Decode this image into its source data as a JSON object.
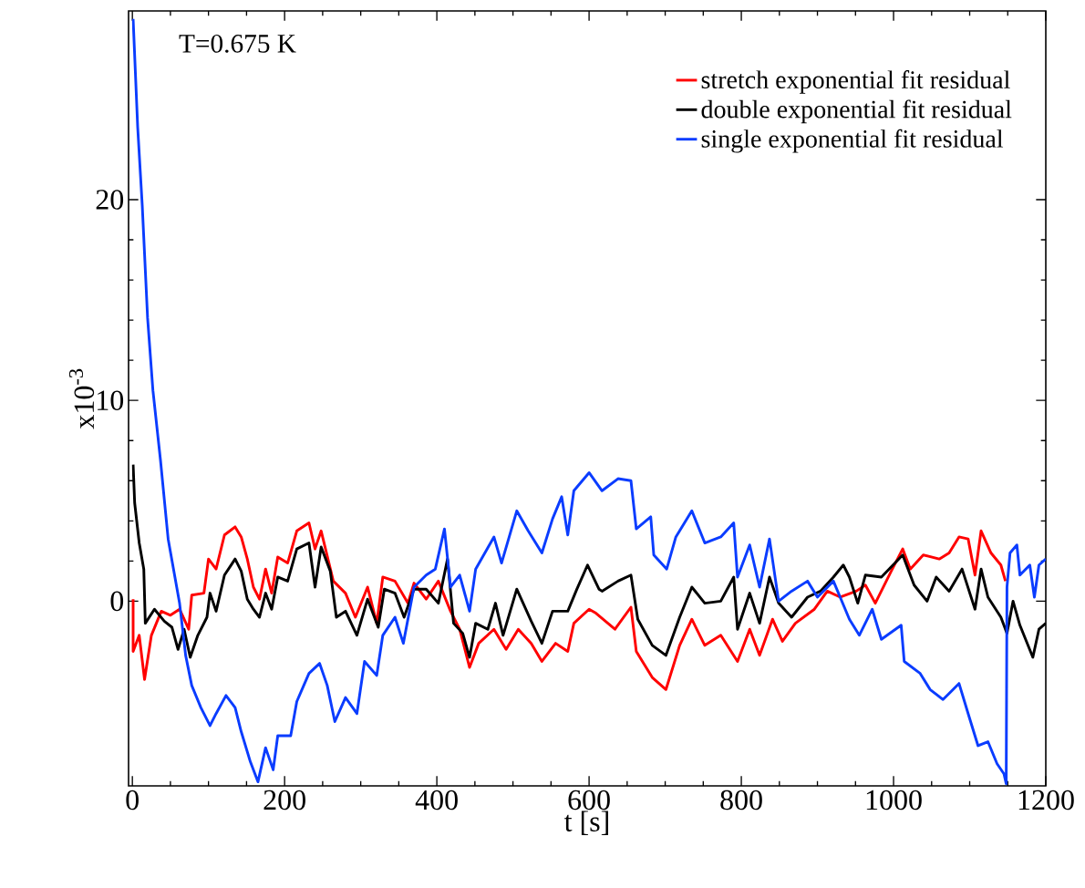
{
  "chart_data": {
    "type": "line",
    "xlabel": "t [s]",
    "ylabel": "x10$^{-3}$",
    "annotations": [
      "T=0.675 K"
    ],
    "xlim": [
      -5,
      1200
    ],
    "ylim": [
      -9.2,
      29.4
    ],
    "xticks": [
      0,
      200,
      400,
      600,
      800,
      1000,
      1200
    ],
    "yticks": [
      0,
      10,
      20
    ],
    "legend": "top right",
    "series": [
      {
        "name": "stretch exponential fit residual",
        "color": "#ff0000",
        "x": [
          1,
          1,
          9,
          16,
          25,
          38,
          50,
          62,
          74,
          78,
          94,
          100,
          110,
          121,
          135,
          143,
          151,
          159,
          167,
          175,
          183,
          191,
          204,
          216,
          232,
          240,
          248,
          264,
          280,
          293,
          309,
          321,
          329,
          345,
          362,
          370,
          386,
          402,
          418,
          430,
          443,
          455,
          475,
          491,
          507,
          524,
          538,
          556,
          572,
          580,
          600,
          609,
          634,
          655,
          662,
          683,
          701,
          719,
          735,
          752,
          773,
          795,
          811,
          824,
          841,
          854,
          871,
          896,
          913,
          930,
          951,
          963,
          976,
          997,
          1012,
          1022,
          1039,
          1060,
          1073,
          1086,
          1098,
          1107,
          1115,
          1128,
          1141,
          1147
        ],
        "values": [
          0.1,
          -2.5,
          -1.7,
          -3.9,
          -1.7,
          -0.5,
          -0.7,
          -0.4,
          -1.4,
          0.3,
          0.4,
          2.1,
          1.6,
          3.3,
          3.7,
          3.2,
          2.1,
          0.7,
          0.1,
          1.6,
          0.4,
          2.2,
          1.9,
          3.5,
          3.9,
          2.6,
          3.5,
          1.0,
          0.4,
          -0.8,
          0.7,
          -1.1,
          1.2,
          1.0,
          -0.1,
          0.9,
          0.1,
          1.0,
          -0.5,
          -1.4,
          -3.3,
          -2.1,
          -1.4,
          -2.4,
          -1.4,
          -2.1,
          -3.0,
          -2.1,
          -2.5,
          -1.1,
          -0.4,
          -0.6,
          -1.4,
          -0.3,
          -2.5,
          -3.8,
          -4.4,
          -2.2,
          -0.9,
          -2.2,
          -1.7,
          -3.0,
          -1.4,
          -2.7,
          -0.9,
          -2.0,
          -1.1,
          -0.4,
          0.5,
          0.2,
          0.5,
          0.8,
          -0.1,
          1.5,
          2.6,
          1.6,
          2.3,
          2.1,
          2.4,
          3.2,
          3.1,
          1.3,
          3.5,
          2.4,
          1.8,
          1.0
        ]
      },
      {
        "name": "double exponential fit residual",
        "color": "#000000",
        "x": [
          1,
          3,
          9,
          15,
          17,
          29,
          42,
          52,
          60,
          68,
          76,
          86,
          98,
          102,
          110,
          121,
          135,
          143,
          151,
          159,
          167,
          175,
          183,
          191,
          204,
          216,
          232,
          240,
          248,
          260,
          268,
          280,
          295,
          309,
          323,
          331,
          345,
          357,
          370,
          386,
          402,
          414,
          422,
          434,
          443,
          451,
          467,
          477,
          487,
          505,
          524,
          538,
          552,
          572,
          584,
          598,
          613,
          617,
          638,
          655,
          664,
          683,
          701,
          719,
          735,
          752,
          773,
          790,
          795,
          811,
          824,
          837,
          849,
          866,
          887,
          904,
          921,
          934,
          942,
          953,
          963,
          984,
          1012,
          1027,
          1044,
          1056,
          1073,
          1090,
          1107,
          1115,
          1124,
          1141,
          1149,
          1157,
          1166,
          1183,
          1191,
          1200
        ],
        "values": [
          6.8,
          4.9,
          2.9,
          1.6,
          -1.1,
          -0.4,
          -1.0,
          -1.3,
          -2.4,
          -1.4,
          -2.8,
          -1.7,
          -0.8,
          0.4,
          -0.5,
          1.3,
          2.1,
          1.5,
          0.1,
          -0.4,
          -0.8,
          0.4,
          -0.4,
          1.2,
          1.0,
          2.6,
          2.9,
          0.7,
          2.7,
          1.5,
          -0.8,
          -0.5,
          -1.7,
          0.1,
          -1.3,
          0.6,
          0.4,
          -0.8,
          0.6,
          0.6,
          -0.1,
          2.1,
          -1.1,
          -1.6,
          -2.8,
          -1.1,
          -1.4,
          -0.1,
          -1.7,
          0.6,
          -1.0,
          -2.1,
          -0.5,
          -0.5,
          0.6,
          1.8,
          0.6,
          0.5,
          1.0,
          1.3,
          -0.9,
          -2.2,
          -2.7,
          -0.8,
          0.7,
          -0.1,
          0.0,
          1.2,
          -1.4,
          0.4,
          -1.1,
          1.2,
          -0.1,
          -0.8,
          0.2,
          0.5,
          1.2,
          1.8,
          1.2,
          -0.1,
          1.3,
          1.2,
          2.3,
          0.8,
          0.0,
          1.2,
          0.5,
          1.6,
          -0.4,
          1.6,
          0.2,
          -0.8,
          -1.6,
          0.0,
          -1.2,
          -2.8,
          -1.4,
          -1.1
        ]
      },
      {
        "name": "single exponential fit residual",
        "color": "#0a3cff",
        "x": [
          1,
          7,
          13,
          20,
          27,
          37,
          47,
          62,
          70,
          78,
          90,
          102,
          110,
          123,
          135,
          143,
          155,
          165,
          175,
          185,
          191,
          208,
          216,
          232,
          246,
          256,
          266,
          280,
          295,
          305,
          321,
          329,
          345,
          356,
          370,
          386,
          398,
          410,
          418,
          430,
          443,
          451,
          475,
          485,
          505,
          520,
          538,
          552,
          564,
          572,
          580,
          600,
          617,
          638,
          655,
          662,
          681,
          685,
          702,
          714,
          735,
          752,
          773,
          790,
          795,
          811,
          824,
          837,
          849,
          866,
          887,
          900,
          921,
          942,
          955,
          972,
          984,
          1010,
          1014,
          1035,
          1048,
          1065,
          1086,
          1098,
          1111,
          1124,
          1136,
          1145,
          1148,
          1149,
          1153,
          1162,
          1166,
          1179,
          1185,
          1191,
          1200
        ],
        "values": [
          29.0,
          23.6,
          19.7,
          14.1,
          10.5,
          7.0,
          3.1,
          -0.1,
          -2.7,
          -4.2,
          -5.3,
          -6.2,
          -5.6,
          -4.7,
          -5.3,
          -6.5,
          -8.0,
          -9.0,
          -7.3,
          -8.4,
          -6.7,
          -6.7,
          -5.0,
          -3.6,
          -3.1,
          -4.2,
          -6.0,
          -4.8,
          -5.6,
          -3.0,
          -3.7,
          -1.7,
          -0.8,
          -2.1,
          0.7,
          1.3,
          1.6,
          3.6,
          0.7,
          1.3,
          -0.5,
          1.6,
          3.2,
          1.9,
          4.5,
          3.5,
          2.4,
          4.1,
          5.2,
          3.3,
          5.5,
          6.4,
          5.5,
          6.1,
          6.0,
          3.6,
          4.2,
          2.3,
          1.6,
          3.2,
          4.5,
          2.9,
          3.2,
          3.9,
          1.2,
          2.8,
          0.7,
          3.1,
          0.0,
          0.5,
          1.0,
          0.2,
          1.0,
          -0.9,
          -1.7,
          -0.4,
          -1.9,
          -1.2,
          -3.0,
          -3.6,
          -4.4,
          -4.9,
          -4.1,
          -5.6,
          -7.2,
          -7.0,
          -8.1,
          -8.6,
          -9.1,
          0.7,
          2.4,
          2.8,
          1.3,
          1.8,
          0.2,
          1.8,
          2.1
        ]
      }
    ]
  }
}
